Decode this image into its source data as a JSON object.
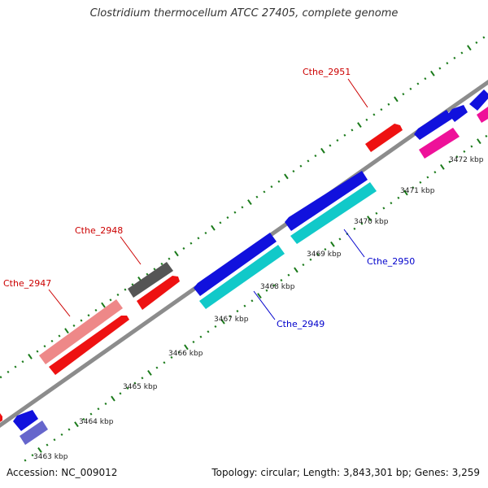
{
  "title": "Clostridium thermocellum ATCC 27405, complete genome",
  "footer": {
    "accession": "Accession: NC_009012",
    "stats": "Topology: circular; Length: 3,843,301 bp; Genes: 3,259"
  },
  "colors": {
    "backbone": "#8c8c8c",
    "ticks": "#1a7a1a",
    "label_red": "#cc0000",
    "label_blue": "#0000cc"
  },
  "kbp_labels": [
    "3463 kbp",
    "3464 kbp",
    "3465 kbp",
    "3466 kbp",
    "3467 kbp",
    "3468 kbp",
    "3469 kbp",
    "3470 kbp",
    "3471 kbp",
    "3472 kbp"
  ],
  "gene_labels": [
    {
      "name": "Cthe_2947",
      "color": "#cc0000"
    },
    {
      "name": "Cthe_2948",
      "color": "#cc0000"
    },
    {
      "name": "Cthe_2949",
      "color": "#0000cc"
    },
    {
      "name": "Cthe_2950",
      "color": "#0000cc"
    },
    {
      "name": "Cthe_2951",
      "color": "#cc0000"
    }
  ]
}
